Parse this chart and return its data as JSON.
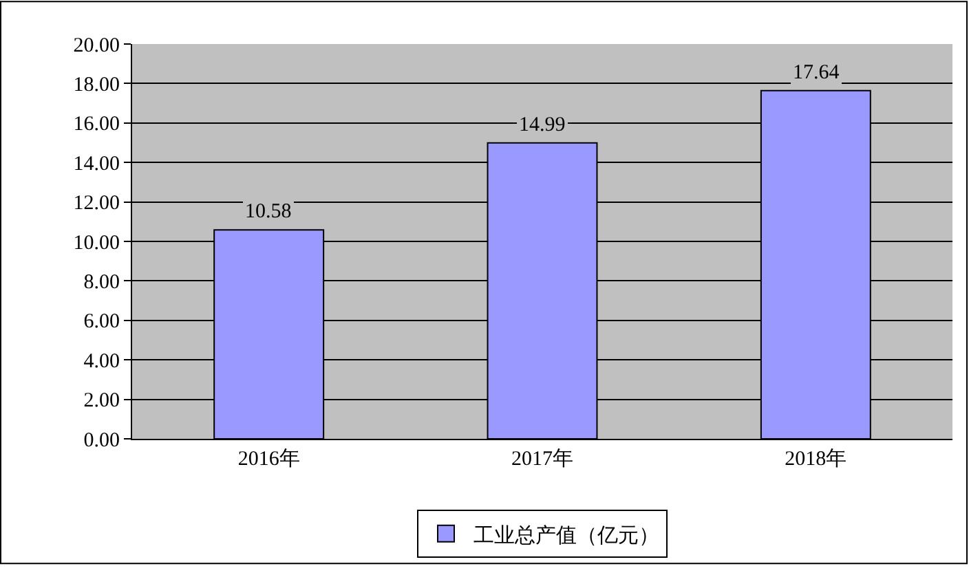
{
  "chart_data": {
    "type": "bar",
    "categories": [
      "2016年",
      "2017年",
      "2018年"
    ],
    "series": [
      {
        "name": "工业总产值（亿元）",
        "color": "#9999ff",
        "values": [
          10.58,
          14.99,
          17.64
        ]
      }
    ],
    "ylim": [
      0,
      20
    ],
    "yticks": [
      {
        "value": 0,
        "label": "0.00"
      },
      {
        "value": 2,
        "label": "2.00"
      },
      {
        "value": 4,
        "label": "4.00"
      },
      {
        "value": 6,
        "label": "6.00"
      },
      {
        "value": 8,
        "label": "8.00"
      },
      {
        "value": 10,
        "label": "10.00"
      },
      {
        "value": 12,
        "label": "12.00"
      },
      {
        "value": 14,
        "label": "14.00"
      },
      {
        "value": 16,
        "label": "16.00"
      },
      {
        "value": 18,
        "label": "18.00"
      },
      {
        "value": 20,
        "label": "20.00"
      }
    ],
    "grid": "y",
    "legend": "bottom",
    "data_labels": true
  }
}
